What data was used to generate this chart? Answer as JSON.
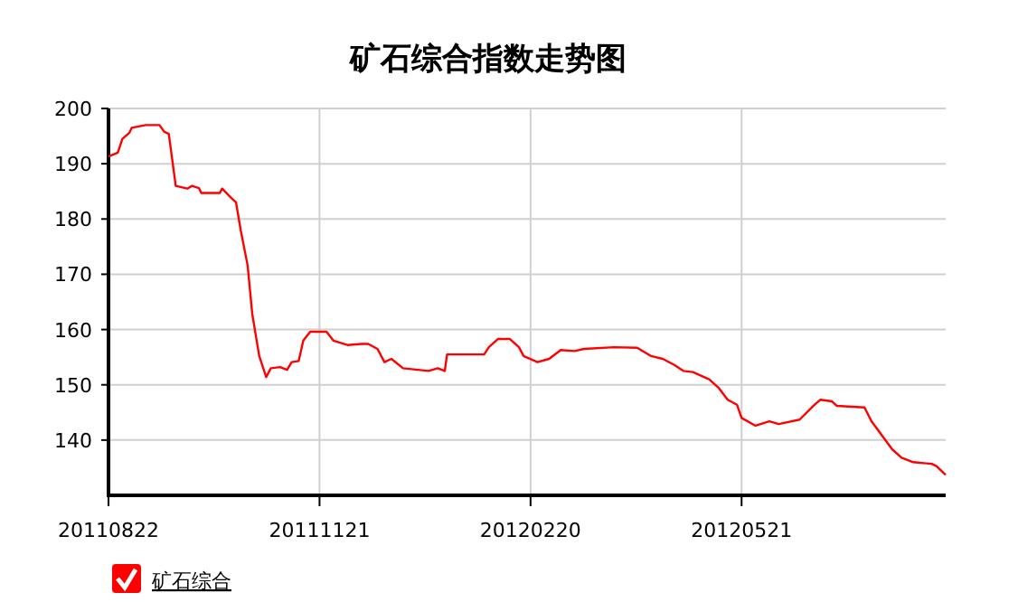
{
  "chart_data": {
    "type": "line",
    "title": "矿石综合指数走势图",
    "x": [
      "2011-08-22",
      "2011-08-26",
      "2011-08-28",
      "2011-08-31",
      "2011-09-01",
      "2011-09-07",
      "2011-09-13",
      "2011-09-15",
      "2011-09-17",
      "2011-09-20",
      "2011-09-25",
      "2011-09-27",
      "2011-09-30",
      "2011-10-01",
      "2011-10-09",
      "2011-10-10",
      "2011-10-14",
      "2011-10-16",
      "2011-10-18",
      "2011-10-21",
      "2011-10-23",
      "2011-10-26",
      "2011-10-29",
      "2011-10-31",
      "2011-11-04",
      "2011-11-07",
      "2011-11-09",
      "2011-11-12",
      "2011-11-14",
      "2011-11-17",
      "2011-11-24",
      "2011-11-27",
      "2011-12-03",
      "2011-12-09",
      "2011-12-12",
      "2011-12-16",
      "2011-12-19",
      "2011-12-22",
      "2011-12-27",
      "2012-01-07",
      "2012-01-11",
      "2012-01-14",
      "2012-01-15",
      "2012-01-31",
      "2012-02-02",
      "2012-02-06",
      "2012-02-11",
      "2012-02-15",
      "2012-02-17",
      "2012-02-23",
      "2012-02-28",
      "2012-03-04",
      "2012-03-10",
      "2012-03-14",
      "2012-03-27",
      "2012-04-06",
      "2012-04-12",
      "2012-04-17",
      "2012-04-22",
      "2012-04-26",
      "2012-04-30",
      "2012-05-07",
      "2012-05-11",
      "2012-05-15",
      "2012-05-19",
      "2012-05-21",
      "2012-05-27",
      "2012-06-02",
      "2012-06-06",
      "2012-06-15",
      "2012-06-21",
      "2012-06-24",
      "2012-06-29",
      "2012-07-01",
      "2012-07-13",
      "2012-07-16",
      "2012-07-25",
      "2012-07-29",
      "2012-08-03",
      "2012-08-11",
      "2012-08-13",
      "2012-08-17"
    ],
    "series": [
      {
        "name": "矿石综合",
        "color": "#ff0000",
        "values": [
          191.3,
          192,
          194.5,
          195.6,
          196.5,
          197,
          197,
          195.8,
          195.4,
          186,
          185.5,
          186,
          185.6,
          184.7,
          184.7,
          185.5,
          183.8,
          183,
          178,
          171.6,
          162.8,
          155.2,
          151.4,
          153,
          153.2,
          152.7,
          154.1,
          154.3,
          158,
          159.6,
          159.6,
          158,
          157.2,
          157.4,
          157.4,
          156.5,
          154.1,
          154.7,
          153,
          152.5,
          153,
          152.5,
          155.5,
          155.5,
          156.8,
          158.3,
          158.3,
          156.8,
          155.2,
          154.1,
          154.7,
          156.3,
          156.1,
          156.5,
          156.8,
          156.7,
          155.2,
          154.7,
          153.6,
          152.5,
          152.3,
          151,
          149.5,
          147.3,
          146.4,
          144,
          142.6,
          143.4,
          142.9,
          143.7,
          146.2,
          147.3,
          147,
          146.2,
          145.9,
          143.4,
          138.3,
          136.8,
          136,
          135.7,
          135.3,
          133.7
        ]
      }
    ],
    "xlim": [
      "2011-08-22",
      "2012-08-17"
    ],
    "xticks": [
      {
        "value": "2011-08-22",
        "label": "20110822"
      },
      {
        "value": "2011-11-21",
        "label": "20111121"
      },
      {
        "value": "2012-02-20",
        "label": "20120220"
      },
      {
        "value": "2012-05-21",
        "label": "20120521"
      }
    ],
    "ylim": [
      130,
      200
    ],
    "yticks": [
      140,
      150,
      160,
      170,
      180,
      190,
      200
    ],
    "grid": true,
    "legend": "bottom left",
    "marker": "none",
    "line_style": "solid"
  }
}
